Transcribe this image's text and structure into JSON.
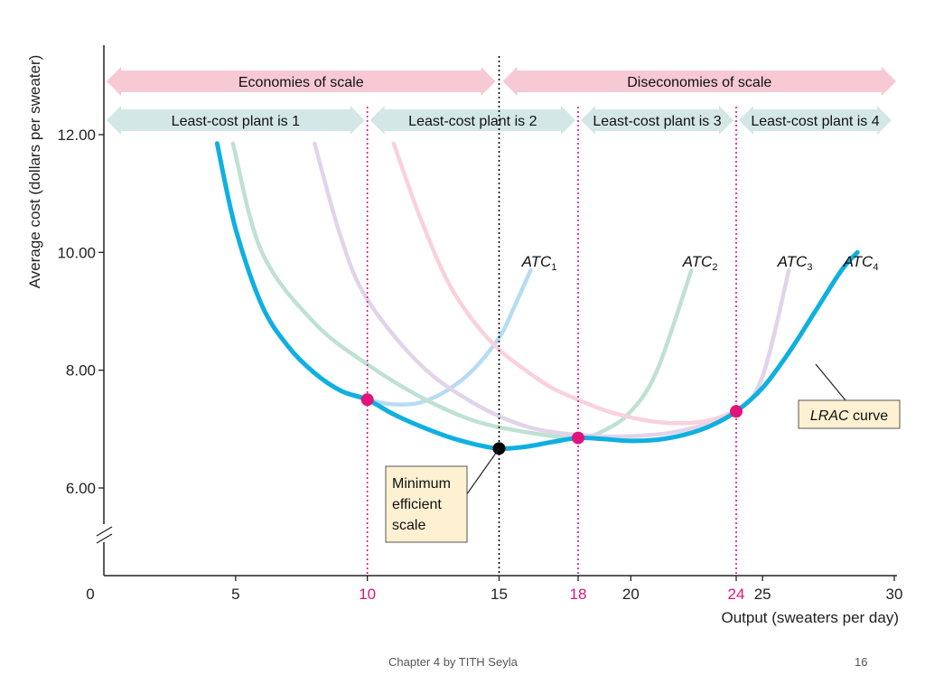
{
  "chart_data": {
    "type": "line",
    "xlabel": "Output (sweaters per day)",
    "ylabel": "Average cost (dollars per sweater)",
    "xlim": [
      0,
      30
    ],
    "ylim": [
      5,
      13.5
    ],
    "x_ticks": [
      0,
      5,
      10,
      15,
      18,
      20,
      24,
      25,
      30
    ],
    "x_ticks_highlight": [
      10,
      18,
      24
    ],
    "y_ticks": [
      "6.00",
      "8.00",
      "10.00",
      "12.00"
    ],
    "y_axis_break": true,
    "series": [
      {
        "name": "ATC1",
        "label_main": "ATC",
        "label_sub": "1",
        "color": "#b7dbf2",
        "x": [
          4.3,
          5,
          6,
          7,
          8,
          9,
          10,
          11,
          12,
          13,
          14,
          15,
          15.5,
          16.2
        ],
        "y": [
          11.85,
          10.4,
          9.1,
          8.4,
          7.95,
          7.65,
          7.5,
          7.42,
          7.45,
          7.65,
          8.0,
          8.55,
          9.0,
          9.7
        ]
      },
      {
        "name": "ATC2",
        "label_main": "ATC",
        "label_sub": "2",
        "color": "#bfe1d3",
        "x": [
          4.9,
          6,
          8,
          10,
          12,
          14,
          16,
          18,
          19,
          20,
          21,
          22.3
        ],
        "y": [
          11.85,
          10.0,
          8.8,
          8.1,
          7.55,
          7.15,
          6.95,
          6.85,
          6.98,
          7.3,
          8.0,
          9.7
        ]
      },
      {
        "name": "ATC3",
        "label_main": "ATC",
        "label_sub": "3",
        "color": "#e1d4ea",
        "x": [
          8.0,
          9,
          10,
          12,
          14,
          16,
          18,
          20,
          22,
          24,
          25,
          26
        ],
        "y": [
          11.85,
          10.25,
          9.2,
          8.1,
          7.45,
          7.05,
          6.9,
          6.88,
          6.98,
          7.3,
          7.9,
          9.7
        ]
      },
      {
        "name": "ATC4",
        "label_main": "ATC",
        "label_sub": "4",
        "color": "#f9d1dc",
        "x": [
          11.0,
          12,
          13,
          14,
          15,
          16,
          17,
          18,
          19,
          20,
          21,
          22,
          23,
          24
        ],
        "y": [
          11.85,
          10.6,
          9.55,
          8.85,
          8.35,
          8.0,
          7.7,
          7.5,
          7.32,
          7.2,
          7.12,
          7.1,
          7.15,
          7.3
        ]
      },
      {
        "name": "LRAC curve",
        "label_main": "LRAC",
        "label_text": "curve",
        "color": "#0fb0e0",
        "x": [
          4.3,
          5,
          6,
          7,
          8,
          9,
          10,
          11,
          12,
          13,
          14,
          15,
          16,
          17,
          18,
          19,
          20,
          21,
          22,
          23,
          24,
          25,
          26,
          27,
          28,
          28.6
        ],
        "y": [
          11.85,
          10.4,
          9.1,
          8.4,
          7.95,
          7.65,
          7.5,
          7.25,
          7.05,
          6.88,
          6.75,
          6.67,
          6.7,
          6.78,
          6.85,
          6.83,
          6.8,
          6.82,
          6.9,
          7.05,
          7.3,
          7.7,
          8.3,
          9.0,
          9.7,
          10.0
        ]
      }
    ],
    "points": [
      {
        "x": 10,
        "y": 7.5,
        "color": "#e0147a"
      },
      {
        "x": 15,
        "y": 6.67,
        "color": "#000000"
      },
      {
        "x": 18,
        "y": 6.85,
        "color": "#e0147a"
      },
      {
        "x": 24,
        "y": 7.3,
        "color": "#e0147a"
      }
    ],
    "vlines": [
      {
        "x": 10,
        "color": "#e0147a"
      },
      {
        "x": 15,
        "color": "#000000"
      },
      {
        "x": 18,
        "color": "#e0147a"
      },
      {
        "x": 24,
        "color": "#e0147a"
      }
    ],
    "ranges_top": [
      {
        "label": "Economies of scale",
        "from": 0,
        "to": 15,
        "color": "#f6c9d5"
      },
      {
        "label": "Diseconomies of scale",
        "from": 15,
        "to": 30,
        "color": "#f6c9d5"
      }
    ],
    "ranges_plant": [
      {
        "label": "Least-cost plant is 1",
        "from": 0,
        "to": 10,
        "color": "#d3e8e6"
      },
      {
        "label": "Least-cost plant is 2",
        "from": 10,
        "to": 18,
        "color": "#d3e8e6"
      },
      {
        "label": "Least-cost plant is 3",
        "from": 18,
        "to": 24,
        "color": "#d3e8e6"
      },
      {
        "label": "Least-cost plant is 4",
        "from": 24,
        "to": 30,
        "color": "#d3e8e6"
      }
    ],
    "annotations": [
      {
        "text": [
          "Minimum",
          "efficient",
          "scale"
        ],
        "points_to": "minimum"
      },
      {
        "text_italic": "LRAC",
        "text": "curve",
        "points_to": "lrac"
      }
    ]
  },
  "footer": {
    "left": "Chapter 4 by TITH Seyla",
    "page": "16"
  }
}
